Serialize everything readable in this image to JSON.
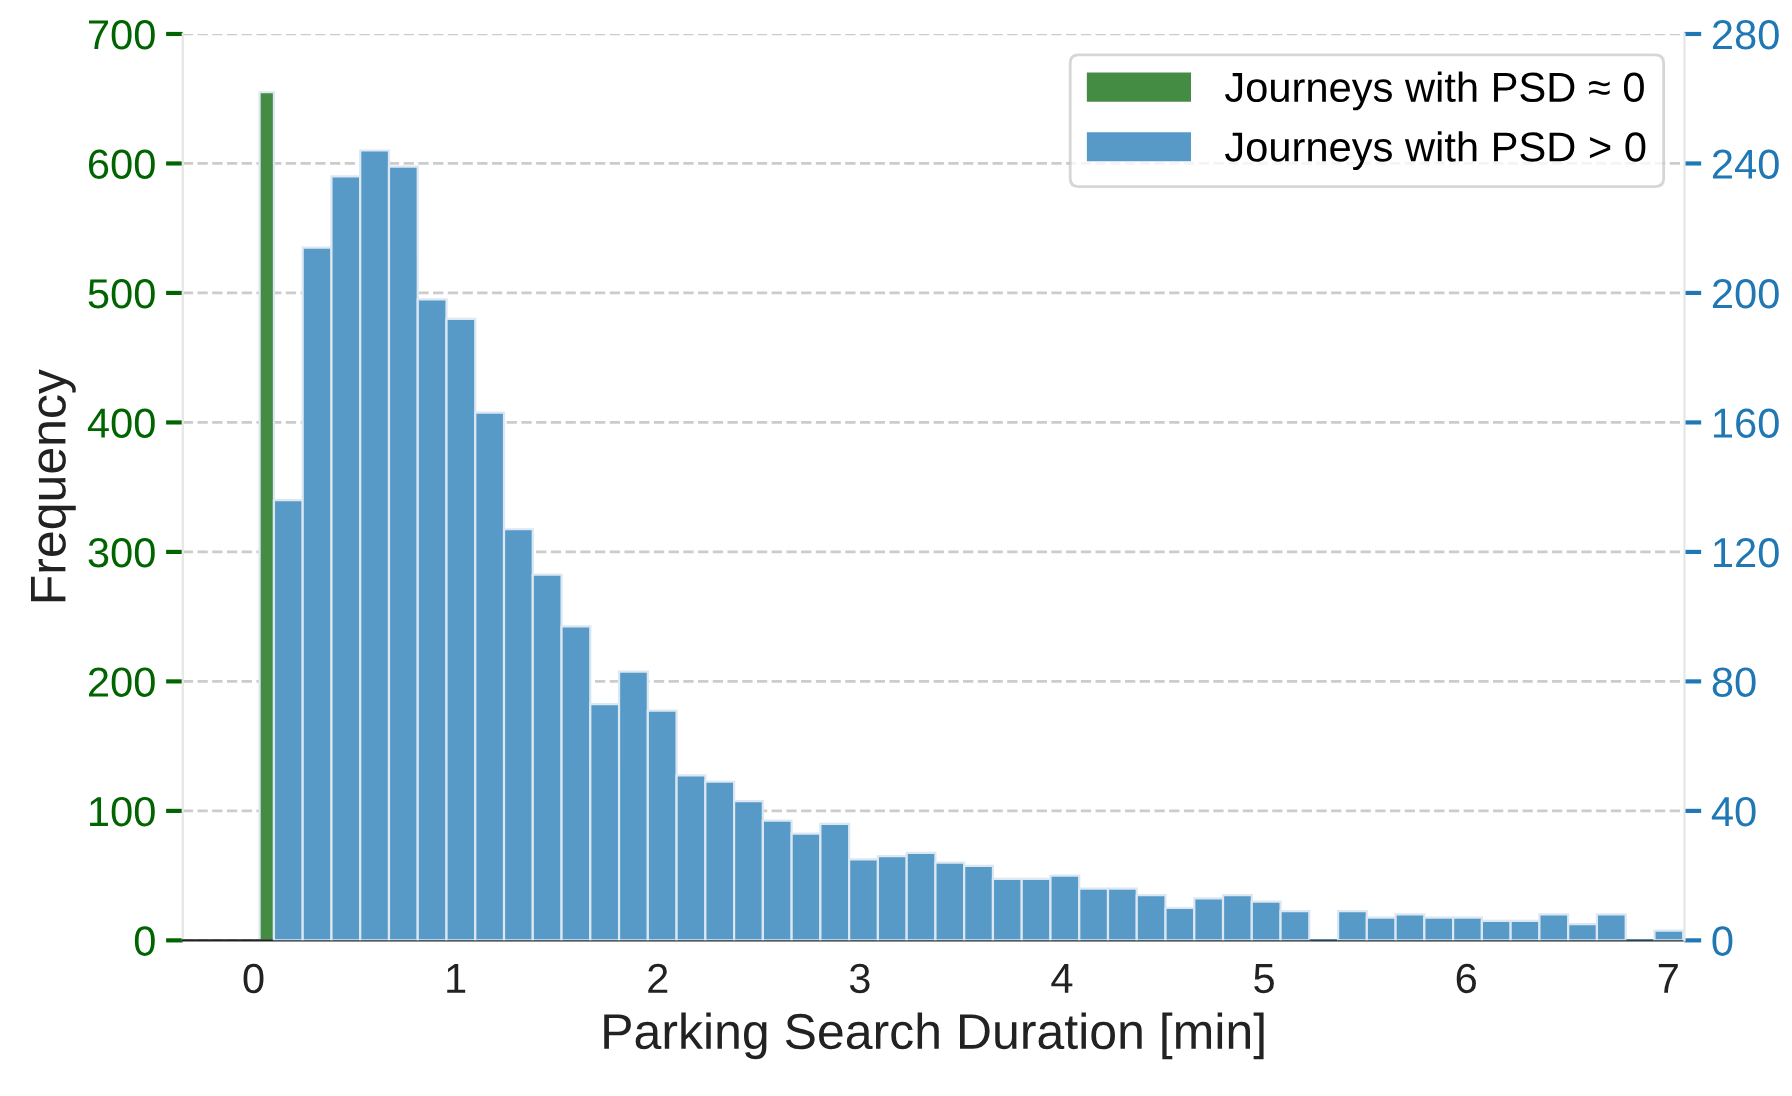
{
  "chart_data": {
    "type": "histogram",
    "xlabel": "Parking Search Duration [min]",
    "ylabel": "Frequency",
    "xlim": [
      -0.35,
      7.08
    ],
    "xticks": [
      0,
      1,
      2,
      3,
      4,
      5,
      6,
      7
    ],
    "ylim": [
      0,
      700
    ],
    "yticks": [
      0,
      100,
      200,
      300,
      400,
      500,
      600,
      700
    ],
    "y2lim": [
      0,
      280
    ],
    "y2ticks": [
      0,
      40,
      80,
      120,
      160,
      200,
      240,
      280
    ],
    "grid": "y",
    "legend": "top right",
    "bins": [
      0.03,
      0.101,
      0.2433,
      0.3856,
      0.5279,
      0.6702,
      0.8125,
      0.9548,
      1.0971,
      1.2394,
      1.3817,
      1.524,
      1.6663,
      1.8086,
      1.9509,
      2.0932,
      2.2355,
      2.3778,
      2.5201,
      2.6624,
      2.8047,
      2.947,
      3.0893,
      3.2316,
      3.3739,
      3.5162,
      3.6585,
      3.8008,
      3.9431,
      4.0854,
      4.2277,
      4.37,
      4.5123,
      4.6546,
      4.7969,
      4.9392,
      5.0815,
      5.2238,
      5.3661,
      5.5084,
      5.6507,
      5.793,
      5.9353,
      6.0776,
      6.2199,
      6.3622,
      6.5045,
      6.6468,
      6.7891,
      6.9314,
      7.0737
    ],
    "series": [
      {
        "name": "Journeys with PSD ≈ 0",
        "color": "#448c44",
        "values": [
          655,
          null,
          null,
          null,
          null,
          null,
          null,
          null,
          null,
          null,
          null,
          null,
          null,
          null,
          null,
          null,
          null,
          null,
          null,
          null,
          null,
          null,
          null,
          null,
          null,
          null,
          null,
          null,
          null,
          null,
          null,
          null,
          null,
          null,
          null,
          null,
          null,
          null,
          null,
          null,
          null,
          null,
          null,
          null,
          null,
          null,
          null,
          null,
          null,
          null
        ]
      },
      {
        "name": "Journeys with PSD > 0",
        "color": "#5799c7",
        "axis": "y2",
        "values": [
          null,
          136,
          214,
          236,
          244,
          239,
          198,
          192,
          163,
          127,
          113,
          97,
          73,
          83,
          71,
          51,
          49,
          43,
          37,
          33,
          36,
          25,
          26,
          27,
          24,
          23,
          19,
          19,
          20,
          16,
          16,
          14,
          10,
          13,
          14,
          12,
          9,
          0,
          9,
          7,
          8,
          7,
          7,
          6,
          6,
          8,
          5,
          8,
          0,
          3
        ]
      }
    ]
  }
}
